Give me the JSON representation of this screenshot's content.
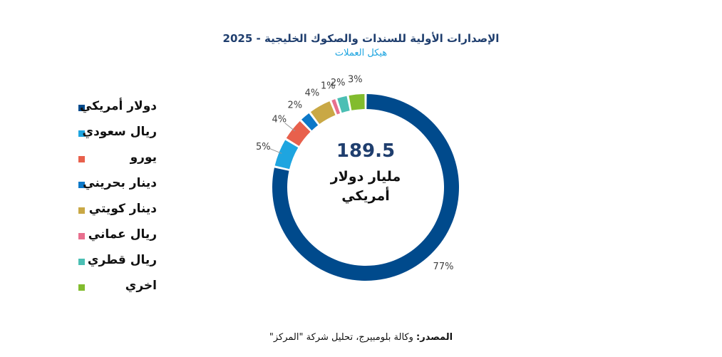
{
  "title": "الإصدارات الأولية للسندات والصكوك الخليجية - 2025",
  "subtitle": "هيكل العملات",
  "center": {
    "value": "189.5",
    "unit": "مليار دولار أمريكي"
  },
  "source": {
    "label": "المصدر:",
    "text": "وكالة بلومبيرج، تحليل شركة \"المركز\""
  },
  "chart_data": {
    "type": "pie",
    "style": "donut",
    "categories": [
      "دولار أمريكي",
      "ريال سعودي",
      "يورو",
      "دينار بحريني",
      "دينار كويتي",
      "ريال عماني",
      "ريال قطري",
      "اخري"
    ],
    "values": [
      77,
      5,
      4,
      2,
      4,
      1,
      2,
      3
    ],
    "labels": [
      "77%",
      "5%",
      "4%",
      "2%",
      "4%",
      "1%",
      "2%",
      "3%"
    ],
    "colors": [
      "#004a8c",
      "#1ea5e0",
      "#e8604c",
      "#0c78c8",
      "#c9a845",
      "#e86f8e",
      "#4bbfb4",
      "#82bc2e"
    ],
    "legend_position": "left"
  }
}
